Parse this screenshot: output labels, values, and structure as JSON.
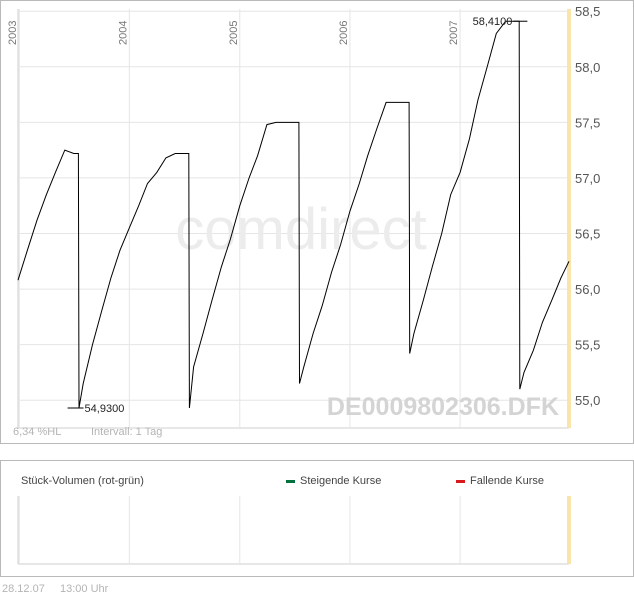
{
  "chart_data": {
    "type": "line",
    "xlabel": "",
    "ylabel": "",
    "ylim": [
      54.75,
      58.52
    ],
    "y_ticks": [
      "55,0",
      "55,5",
      "56,0",
      "56,5",
      "57,0",
      "57,5",
      "58,0",
      "58,5"
    ],
    "x_tick_labels": [
      "2003",
      "2004",
      "2005",
      "2006",
      "2007"
    ],
    "grid": true,
    "series": [
      {
        "x": [
          "2002-12-28",
          "2003-01-28",
          "2003-03-01",
          "2003-04-01",
          "2003-05-01",
          "2003-06-01",
          "2003-07-01",
          "2003-07-16",
          "2003-07-18",
          "2003-08-01",
          "2003-09-01",
          "2003-10-01",
          "2003-11-01",
          "2003-12-01",
          "2004-01-01",
          "2004-02-01",
          "2004-03-01",
          "2004-04-01",
          "2004-05-01",
          "2004-06-01",
          "2004-07-01",
          "2004-07-16",
          "2004-07-18",
          "2004-08-01",
          "2004-09-01",
          "2004-10-01",
          "2004-11-01",
          "2004-12-01",
          "2005-01-01",
          "2005-02-01",
          "2005-03-01",
          "2005-04-01",
          "2005-05-01",
          "2005-06-01",
          "2005-07-01",
          "2005-07-16",
          "2005-07-18",
          "2005-08-01",
          "2005-09-01",
          "2005-10-01",
          "2005-11-01",
          "2005-12-01",
          "2006-01-01",
          "2006-02-01",
          "2006-03-01",
          "2006-04-01",
          "2006-05-01",
          "2006-06-01",
          "2006-07-01",
          "2006-07-16",
          "2006-07-18",
          "2006-08-01",
          "2006-09-01",
          "2006-10-01",
          "2006-11-01",
          "2006-12-01",
          "2007-01-01",
          "2007-02-01",
          "2007-03-01",
          "2007-04-01",
          "2007-05-01",
          "2007-06-01",
          "2007-07-01",
          "2007-07-16",
          "2007-07-18",
          "2007-08-01",
          "2007-09-01",
          "2007-10-01",
          "2007-11-01",
          "2007-12-01",
          "2007-12-28"
        ],
        "values": [
          56.08,
          56.35,
          56.62,
          56.85,
          57.05,
          57.25,
          57.22,
          57.22,
          54.93,
          55.15,
          55.5,
          55.8,
          56.1,
          56.35,
          56.55,
          56.75,
          56.95,
          57.05,
          57.18,
          57.22,
          57.22,
          57.22,
          54.93,
          55.3,
          55.6,
          55.9,
          56.2,
          56.45,
          56.75,
          57.0,
          57.2,
          57.48,
          57.5,
          57.5,
          57.5,
          57.5,
          55.15,
          55.3,
          55.6,
          55.85,
          56.15,
          56.4,
          56.7,
          56.95,
          57.2,
          57.45,
          57.68,
          57.68,
          57.68,
          57.68,
          55.42,
          55.6,
          55.9,
          56.2,
          56.5,
          56.85,
          57.05,
          57.35,
          57.7,
          58.0,
          58.3,
          58.41,
          58.41,
          58.41,
          55.1,
          55.25,
          55.45,
          55.7,
          55.9,
          56.1,
          56.25
        ]
      }
    ],
    "annotations": [
      {
        "label": "54,9300",
        "x": "2003-07-20",
        "y": 54.93
      },
      {
        "label": "58,4100",
        "x": "2007-07-10",
        "y": 58.41
      }
    ]
  },
  "watermark": {
    "logo": "comdirect",
    "isin": "DE0009802306.DFK"
  },
  "info": {
    "perf": "6,34 %HL",
    "interval": "Intervall: 1 Tag"
  },
  "volume": {
    "title": "Stück-Volumen (rot-grün)",
    "legend_up": "Steigende Kurse",
    "legend_down": "Fallende Kurse",
    "up_color": "#00703c",
    "down_color": "#d7191c"
  },
  "footer": {
    "date": "28.12.07",
    "time": "13:00 Uhr"
  },
  "colors": {
    "highlight": "#f9e4a9",
    "grid": "#e5e5e5",
    "line": "#000000"
  }
}
